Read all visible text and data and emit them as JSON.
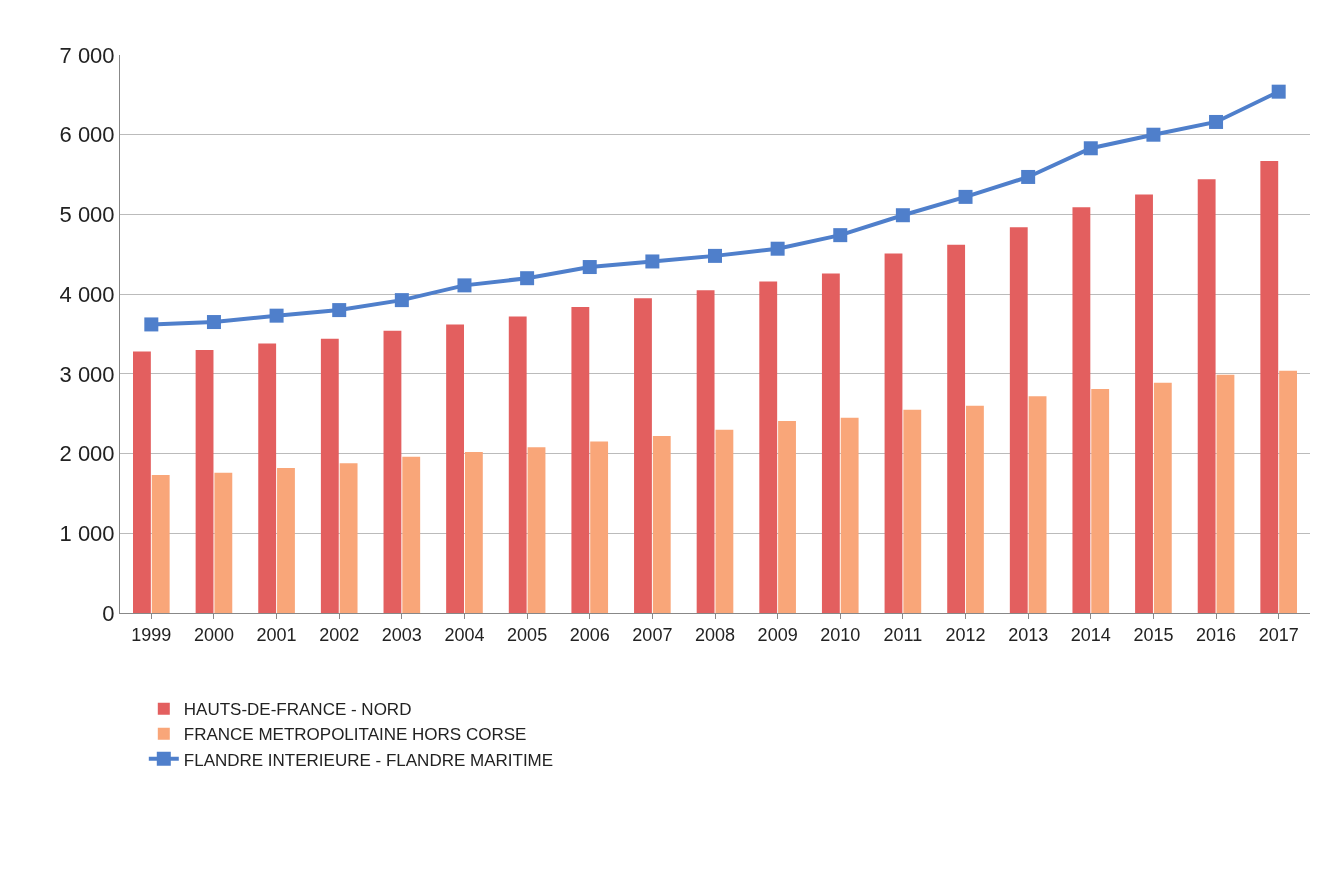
{
  "chart_data": {
    "type": "bar",
    "categories": [
      "1999",
      "2000",
      "2001",
      "2002",
      "2003",
      "2004",
      "2005",
      "2006",
      "2007",
      "2008",
      "2009",
      "2010",
      "2011",
      "2012",
      "2013",
      "2014",
      "2015",
      "2016",
      "2017"
    ],
    "series": [
      {
        "name": "HAUTS-DE-FRANCE - NORD",
        "color": "#e35f5f",
        "values": [
          3280,
          3300,
          3380,
          3440,
          3540,
          3620,
          3720,
          3840,
          3950,
          4050,
          4160,
          4260,
          4510,
          4620,
          4840,
          5090,
          5250,
          5440,
          5670
        ]
      },
      {
        "name": "FRANCE METROPOLITAINE HORS CORSE",
        "color": "#f9a679",
        "values": [
          1730,
          1760,
          1820,
          1880,
          1960,
          2020,
          2080,
          2150,
          2220,
          2300,
          2410,
          2450,
          2550,
          2600,
          2720,
          2810,
          2890,
          2990,
          3040
        ]
      },
      {
        "name": "FLANDRE INTERIEURE - FLANDRE MARITIME",
        "type": "line",
        "color": "#4f7fcb",
        "marker": "square",
        "line_style": "solid",
        "values": [
          3620,
          3650,
          3730,
          3800,
          3925,
          4110,
          4200,
          4340,
          4410,
          4480,
          4570,
          4740,
          4990,
          5220,
          5470,
          5830,
          6000,
          6160,
          6540
        ]
      }
    ],
    "ylim": [
      0,
      7000
    ],
    "yticks": [
      {
        "value": 0,
        "label": "0"
      },
      {
        "value": 1000,
        "label": "1 000"
      },
      {
        "value": 2000,
        "label": "2 000"
      },
      {
        "value": 3000,
        "label": "3 000"
      },
      {
        "value": 4000,
        "label": "4 000"
      },
      {
        "value": 5000,
        "label": "5 000"
      },
      {
        "value": 6000,
        "label": "6 000"
      },
      {
        "value": 7000,
        "label": "7 000"
      }
    ],
    "grid": "y",
    "legend": "bottom"
  }
}
